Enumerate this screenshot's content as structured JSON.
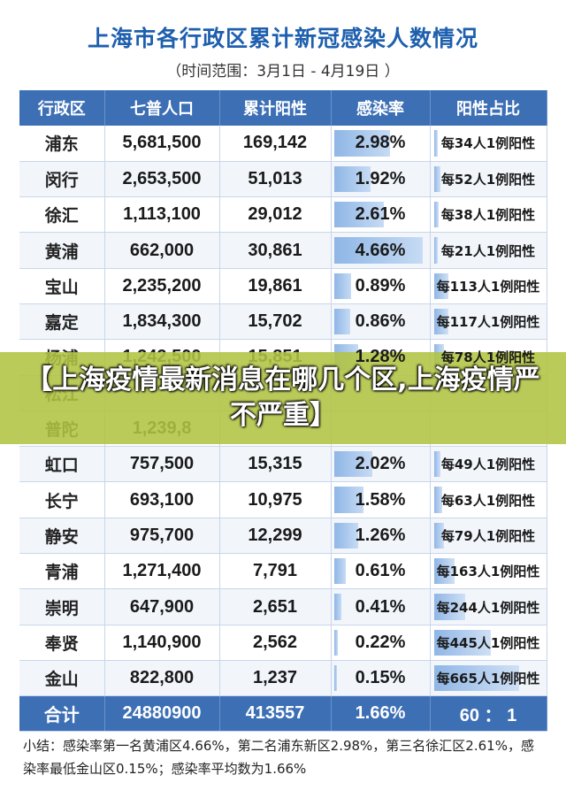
{
  "title": "上海市各行政区累计新冠感染人数情况",
  "subtitle": "（时间范围：3月1日 - 4月19日 ）",
  "headers": [
    "行政区",
    "七普人口",
    "累计阳性",
    "感染率",
    "阳性占比"
  ],
  "rows": [
    {
      "district": "浦东",
      "population": "5,681,500",
      "positive": "169,142",
      "rate": "2.98%",
      "rate_value": 2.98,
      "ratio": "每34人1例阳性",
      "ratio_per": 34
    },
    {
      "district": "闵行",
      "population": "2,653,500",
      "positive": "51,013",
      "rate": "1.92%",
      "rate_value": 1.92,
      "ratio": "每52人1例阳性",
      "ratio_per": 52
    },
    {
      "district": "徐汇",
      "population": "1,113,100",
      "positive": "29,012",
      "rate": "2.61%",
      "rate_value": 2.61,
      "ratio": "每38人1例阳性",
      "ratio_per": 38
    },
    {
      "district": "黄浦",
      "population": "662,000",
      "positive": "30,861",
      "rate": "4.66%",
      "rate_value": 4.66,
      "ratio": "每21人1例阳性",
      "ratio_per": 21
    },
    {
      "district": "宝山",
      "population": "2,235,200",
      "positive": "19,861",
      "rate": "0.89%",
      "rate_value": 0.89,
      "ratio": "每113人1例阳性",
      "ratio_per": 113
    },
    {
      "district": "嘉定",
      "population": "1,834,300",
      "positive": "15,702",
      "rate": "0.86%",
      "rate_value": 0.86,
      "ratio": "每117人1例阳性",
      "ratio_per": 117
    },
    {
      "district": "杨浦",
      "population": "1,242,500",
      "positive": "15,851",
      "rate": "1.28%",
      "rate_value": 1.28,
      "ratio": "每78人1例阳性",
      "ratio_per": 78
    },
    {
      "district": "松江",
      "population": "",
      "positive": "",
      "rate": "",
      "rate_value": 0,
      "ratio": "",
      "ratio_per": 0
    },
    {
      "district": "普陀",
      "population": "1,239,8",
      "positive": "",
      "rate": "",
      "rate_value": 0,
      "ratio": "",
      "ratio_per": 0
    },
    {
      "district": "虹口",
      "population": "757,500",
      "positive": "15,315",
      "rate": "2.02%",
      "rate_value": 2.02,
      "ratio": "每49人1例阳性",
      "ratio_per": 49
    },
    {
      "district": "长宁",
      "population": "693,100",
      "positive": "10,975",
      "rate": "1.58%",
      "rate_value": 1.58,
      "ratio": "每63人1例阳性",
      "ratio_per": 63
    },
    {
      "district": "静安",
      "population": "975,700",
      "positive": "12,299",
      "rate": "1.26%",
      "rate_value": 1.26,
      "ratio": "每79人1例阳性",
      "ratio_per": 79
    },
    {
      "district": "青浦",
      "population": "1,271,400",
      "positive": "7,791",
      "rate": "0.61%",
      "rate_value": 0.61,
      "ratio": "每163人1例阳性",
      "ratio_per": 163
    },
    {
      "district": "崇明",
      "population": "647,900",
      "positive": "2,651",
      "rate": "0.41%",
      "rate_value": 0.41,
      "ratio": "每244人1例阳性",
      "ratio_per": 244
    },
    {
      "district": "奉贤",
      "population": "1,140,900",
      "positive": "2,562",
      "rate": "0.22%",
      "rate_value": 0.22,
      "ratio": "每445人1例阳性",
      "ratio_per": 445
    },
    {
      "district": "金山",
      "population": "822,800",
      "positive": "1,237",
      "rate": "0.15%",
      "rate_value": 0.15,
      "ratio": "每665人1例阳性",
      "ratio_per": 665
    }
  ],
  "total": {
    "district": "合计",
    "population": "24880900",
    "positive": "413557",
    "rate": "1.66%",
    "ratio": "60 ： 1"
  },
  "summary": "小结：感染率第一名黄浦区4.66%，第二名浦东新区2.98%，第三名徐汇区2.61%，感染率最低金山区0.15%；感染率平均数为1.66%",
  "banner": "【上海疫情最新消息在哪几个区,上海疫情严不严重】"
}
